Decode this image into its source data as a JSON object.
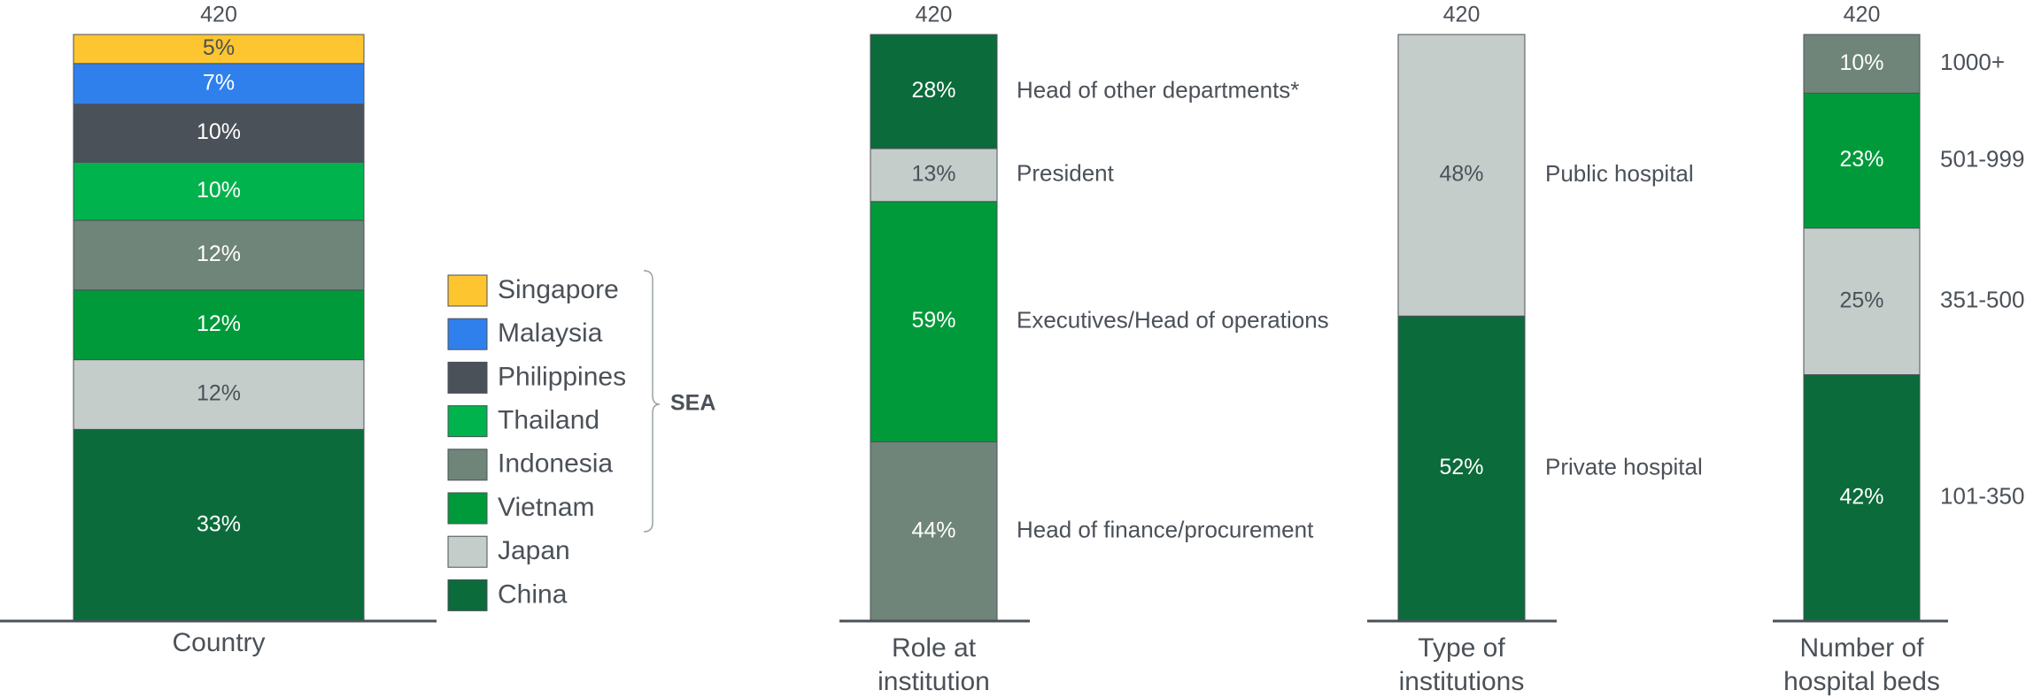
{
  "chart_data": [
    {
      "type": "stacked-bar",
      "total": 420,
      "label": [
        "Country"
      ],
      "legend": true,
      "legend_group": "SEA",
      "series": [
        {
          "name": "China",
          "color": "#0b6b3a",
          "values": [
            33
          ],
          "value_labels": [
            "33%"
          ]
        },
        {
          "name": "Japan",
          "color": "#c5cdcb",
          "values": [
            12
          ],
          "value_labels": [
            "12%"
          ]
        },
        {
          "name": "Vietnam",
          "color": "#009a3a",
          "values": [
            12
          ],
          "value_labels": [
            "12%"
          ]
        },
        {
          "name": "Indonesia",
          "color": "#6f8579",
          "values": [
            12
          ],
          "value_labels": [
            "12%"
          ]
        },
        {
          "name": "Thailand",
          "color": "#00b34d",
          "values": [
            10
          ],
          "value_labels": [
            "10%"
          ]
        },
        {
          "name": "Philippines",
          "color": "#4b5158",
          "values": [
            10
          ],
          "value_labels": [
            "10%"
          ]
        },
        {
          "name": "Malaysia",
          "color": "#2f80ed",
          "values": [
            7
          ],
          "value_labels": [
            "7%"
          ]
        },
        {
          "name": "Singapore",
          "color": "#fdc530",
          "values": [
            5
          ],
          "value_labels": [
            "5%"
          ]
        }
      ]
    },
    {
      "type": "stacked-bar",
      "total": 420,
      "label": [
        "Role at",
        "institution"
      ],
      "legend": false,
      "series": [
        {
          "name": "Head of finance/procurement",
          "color": "#6f8579",
          "values": [
            44
          ],
          "value_labels": [
            "44%"
          ]
        },
        {
          "name": "Executives/Head of operations",
          "color": "#009a3a",
          "values": [
            59
          ],
          "value_labels": [
            "59%"
          ]
        },
        {
          "name": "President",
          "color": "#c5cdcb",
          "values": [
            13
          ],
          "value_labels": [
            "13%"
          ]
        },
        {
          "name": "Head of other departments*",
          "color": "#0b6b3a",
          "values": [
            28
          ],
          "value_labels": [
            "28%"
          ]
        }
      ]
    },
    {
      "type": "stacked-bar",
      "total": 420,
      "label": [
        "Type of",
        "institutions"
      ],
      "legend": false,
      "series": [
        {
          "name": "Private hospital",
          "color": "#0b6b3a",
          "values": [
            52
          ],
          "value_labels": [
            "52%"
          ]
        },
        {
          "name": "Public hospital",
          "color": "#c5cdcb",
          "values": [
            48
          ],
          "value_labels": [
            "48%"
          ]
        }
      ]
    },
    {
      "type": "stacked-bar",
      "total": 420,
      "label": [
        "Number of",
        "hospital beds"
      ],
      "legend": false,
      "series": [
        {
          "name": "101-350",
          "color": "#0b6b3a",
          "values": [
            42
          ],
          "value_labels": [
            "42%"
          ]
        },
        {
          "name": "351-500",
          "color": "#c5cdcb",
          "values": [
            25
          ],
          "value_labels": [
            "25%"
          ]
        },
        {
          "name": "501-999",
          "color": "#009a3a",
          "values": [
            23
          ],
          "value_labels": [
            "23%"
          ]
        },
        {
          "name": "1000+",
          "color": "#6f8579",
          "values": [
            10
          ],
          "value_labels": [
            "10%"
          ]
        }
      ]
    }
  ]
}
